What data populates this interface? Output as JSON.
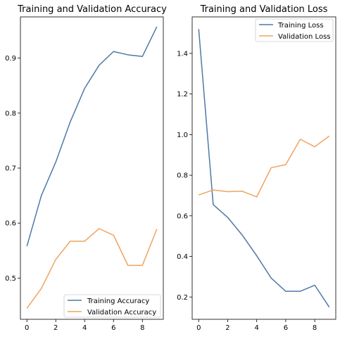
{
  "chart_data": [
    {
      "type": "line",
      "title": "Training and Validation Accuracy",
      "x": [
        0,
        1,
        2,
        3,
        4,
        5,
        6,
        7,
        8,
        9
      ],
      "xlim": [
        -0.45,
        9.45
      ],
      "ylim": [
        0.425,
        0.975
      ],
      "xticks": [
        0,
        2,
        4,
        6,
        8
      ],
      "yticks": [
        0.5,
        0.6,
        0.7,
        0.8,
        0.9
      ],
      "xtick_labels": [
        "0",
        "2",
        "4",
        "6",
        "8"
      ],
      "ytick_labels": [
        "0.5",
        "0.6",
        "0.7",
        "0.8",
        "0.9"
      ],
      "legend": "lower-right",
      "grid": false,
      "series": [
        {
          "name": "Training Accuracy",
          "color": "#4e79a7",
          "values": [
            0.558,
            0.65,
            0.711,
            0.784,
            0.845,
            0.887,
            0.912,
            0.906,
            0.903,
            0.957
          ]
        },
        {
          "name": "Validation Accuracy",
          "color": "#f0a35e",
          "values": [
            0.445,
            0.481,
            0.534,
            0.567,
            0.567,
            0.59,
            0.578,
            0.523,
            0.523,
            0.589
          ]
        }
      ]
    },
    {
      "type": "line",
      "title": "Training and Validation Loss",
      "x": [
        0,
        1,
        2,
        3,
        4,
        5,
        6,
        7,
        8,
        9
      ],
      "xlim": [
        -0.45,
        9.45
      ],
      "ylim": [
        0.09,
        1.58
      ],
      "xticks": [
        0,
        2,
        4,
        6,
        8
      ],
      "yticks": [
        0.2,
        0.4,
        0.6,
        0.8,
        1.0,
        1.2,
        1.4
      ],
      "xtick_labels": [
        "0",
        "2",
        "4",
        "6",
        "8"
      ],
      "ytick_labels": [
        "0.2",
        "0.4",
        "0.6",
        "0.8",
        "1.0",
        "1.2",
        "1.4"
      ],
      "legend": "top-right",
      "grid": false,
      "series": [
        {
          "name": "Training Loss",
          "color": "#4e79a7",
          "values": [
            1.52,
            0.655,
            0.592,
            0.505,
            0.403,
            0.293,
            0.228,
            0.228,
            0.258,
            0.15
          ]
        },
        {
          "name": "Validation Loss",
          "color": "#f0a35e",
          "values": [
            0.703,
            0.727,
            0.719,
            0.721,
            0.693,
            0.837,
            0.852,
            0.977,
            0.94,
            0.993
          ]
        }
      ]
    }
  ]
}
